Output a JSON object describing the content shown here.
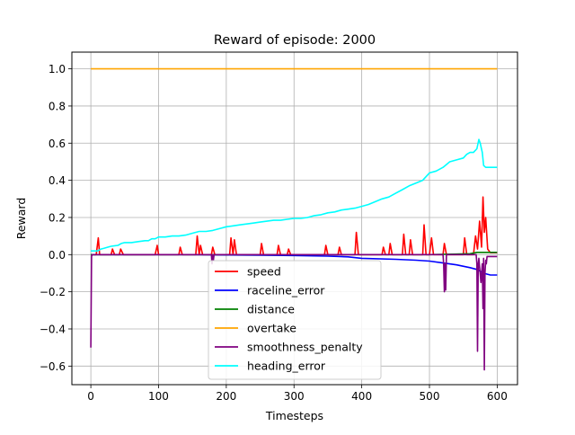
{
  "chart_data": {
    "type": "line",
    "title": "Reward of episode: 2000",
    "xlabel": "Timesteps",
    "ylabel": "Reward",
    "xlim": [
      -28,
      630
    ],
    "ylim": [
      -0.7,
      1.09
    ],
    "xticks": [
      0,
      100,
      200,
      300,
      400,
      500,
      600
    ],
    "yticks": [
      -0.6,
      -0.4,
      -0.2,
      0.0,
      0.2,
      0.4,
      0.6,
      0.8,
      1.0
    ],
    "xtick_labels": [
      "0",
      "100",
      "200",
      "300",
      "400",
      "500",
      "600"
    ],
    "ytick_labels": [
      "−0.6",
      "−0.4",
      "−0.2",
      "0.0",
      "0.2",
      "0.4",
      "0.6",
      "0.8",
      "1.0"
    ],
    "grid": true,
    "legend_position": "lower-center",
    "series": [
      {
        "name": "speed",
        "color": "#ff0000",
        "x": [
          0,
          8,
          11,
          13,
          30,
          32,
          35,
          42,
          44,
          48,
          55,
          95,
          98,
          100,
          130,
          132,
          135,
          155,
          157,
          160,
          162,
          165,
          178,
          180,
          183,
          205,
          207,
          210,
          212,
          215,
          250,
          252,
          255,
          275,
          277,
          280,
          290,
          292,
          295,
          345,
          347,
          350,
          365,
          367,
          370,
          390,
          392,
          395,
          430,
          432,
          435,
          440,
          442,
          445,
          460,
          462,
          465,
          470,
          472,
          475,
          490,
          492,
          495,
          500,
          503,
          506,
          520,
          522,
          525,
          550,
          552,
          555,
          565,
          568,
          571,
          574,
          577,
          579,
          581,
          583,
          586,
          590,
          600
        ],
        "values": [
          0,
          0,
          0.09,
          0,
          0,
          0.03,
          0,
          0,
          0.03,
          0,
          0,
          0,
          0.05,
          0,
          0,
          0.04,
          0,
          0,
          0.1,
          0,
          0.05,
          0,
          0,
          0.04,
          0,
          0,
          0.09,
          0,
          0.08,
          0,
          0,
          0.06,
          0,
          0,
          0.05,
          0,
          0,
          0.03,
          0,
          0,
          0.05,
          0,
          0,
          0.04,
          0,
          0,
          0.12,
          0,
          0,
          0.04,
          0,
          0,
          0.06,
          0,
          0,
          0.11,
          0,
          0,
          0.08,
          0,
          0,
          0.16,
          0,
          0,
          0.09,
          0,
          0,
          0.06,
          0,
          0,
          0.09,
          0,
          0,
          0.1,
          0.03,
          0.18,
          0.04,
          0.31,
          0.12,
          0.2,
          0.03,
          0.01,
          0.01
        ]
      },
      {
        "name": "raceline_error",
        "color": "#0000ff",
        "x": [
          0,
          50,
          100,
          150,
          200,
          250,
          300,
          350,
          380,
          400,
          450,
          480,
          500,
          520,
          540,
          560,
          570,
          580,
          590,
          600
        ],
        "values": [
          0,
          0,
          0,
          0,
          -0.002,
          -0.003,
          -0.005,
          -0.008,
          -0.012,
          -0.02,
          -0.025,
          -0.03,
          -0.035,
          -0.045,
          -0.055,
          -0.07,
          -0.08,
          -0.1,
          -0.11,
          -0.11
        ]
      },
      {
        "name": "distance",
        "color": "#008000",
        "x": [
          0,
          400,
          500,
          560,
          570,
          600
        ],
        "values": [
          0,
          0,
          0,
          0.005,
          0.012,
          0.012
        ]
      },
      {
        "name": "overtake",
        "color": "#ffa500",
        "x": [
          0,
          600
        ],
        "values": [
          1.0,
          1.0
        ]
      },
      {
        "name": "smoothness_penalty",
        "color": "#800080",
        "x": [
          0,
          1,
          2,
          178,
          179,
          180,
          181,
          182,
          520,
          521,
          522,
          523,
          524,
          525,
          569,
          570,
          571,
          572,
          573,
          576,
          578,
          579,
          580,
          581,
          582,
          583,
          584,
          585,
          600
        ],
        "values": [
          -0.5,
          -0.01,
          0,
          0,
          -0.05,
          0,
          -0.03,
          0,
          0,
          -0.05,
          -0.2,
          -0.05,
          -0.19,
          0,
          0,
          -0.05,
          -0.52,
          -0.05,
          -0.02,
          -0.15,
          -0.05,
          -0.29,
          -0.02,
          -0.62,
          -0.1,
          -0.03,
          -0.05,
          -0.01,
          -0.01
        ]
      },
      {
        "name": "heading_error",
        "color": "#00ffff",
        "x": [
          0,
          10,
          15,
          20,
          25,
          30,
          40,
          45,
          50,
          60,
          70,
          80,
          85,
          90,
          95,
          100,
          110,
          120,
          130,
          140,
          150,
          160,
          170,
          180,
          190,
          200,
          210,
          220,
          230,
          240,
          250,
          260,
          270,
          280,
          290,
          300,
          310,
          320,
          330,
          340,
          350,
          360,
          370,
          380,
          390,
          400,
          410,
          420,
          430,
          440,
          450,
          460,
          470,
          480,
          490,
          500,
          510,
          520,
          530,
          540,
          550,
          555,
          560,
          565,
          570,
          573,
          575,
          578,
          580,
          583,
          585,
          590,
          600
        ],
        "values": [
          0.02,
          0.02,
          0.03,
          0.035,
          0.04,
          0.045,
          0.05,
          0.06,
          0.065,
          0.065,
          0.07,
          0.075,
          0.075,
          0.085,
          0.085,
          0.095,
          0.095,
          0.1,
          0.1,
          0.105,
          0.115,
          0.125,
          0.125,
          0.13,
          0.14,
          0.15,
          0.155,
          0.16,
          0.165,
          0.17,
          0.175,
          0.18,
          0.185,
          0.185,
          0.19,
          0.195,
          0.195,
          0.2,
          0.21,
          0.215,
          0.225,
          0.23,
          0.24,
          0.245,
          0.25,
          0.26,
          0.27,
          0.285,
          0.3,
          0.31,
          0.33,
          0.35,
          0.37,
          0.385,
          0.4,
          0.44,
          0.45,
          0.47,
          0.5,
          0.51,
          0.52,
          0.54,
          0.55,
          0.55,
          0.57,
          0.62,
          0.6,
          0.55,
          0.48,
          0.47,
          0.47,
          0.47,
          0.47
        ]
      }
    ]
  }
}
